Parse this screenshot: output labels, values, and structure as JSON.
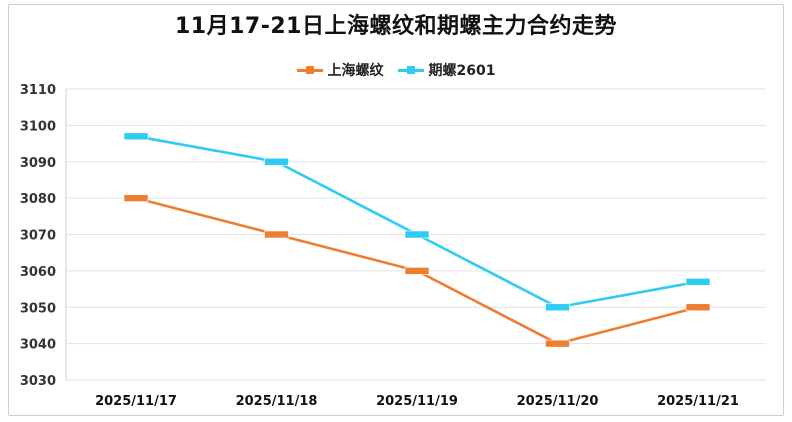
{
  "title": "11月17-21日上海螺纹和期螺主力合约走势",
  "chart_data": {
    "type": "line",
    "categories": [
      "2025/11/17",
      "2025/11/18",
      "2025/11/19",
      "2025/11/20",
      "2025/11/21"
    ],
    "series": [
      {
        "name": "上海螺纹",
        "color": "#ed7d31",
        "values": [
          3080,
          3070,
          3060,
          3040,
          3050
        ]
      },
      {
        "name": "期螺2601",
        "color": "#2ecbf3",
        "values": [
          3097,
          3090,
          3070,
          3050,
          3057
        ]
      }
    ],
    "ylim": [
      3030,
      3110
    ],
    "yticks": [
      "3110",
      "3100",
      "3090",
      "3080",
      "3070",
      "3060",
      "3050",
      "3040",
      "3030"
    ],
    "grid": true,
    "legend_position": "top-center",
    "marker": "square",
    "drop_lines": true
  }
}
